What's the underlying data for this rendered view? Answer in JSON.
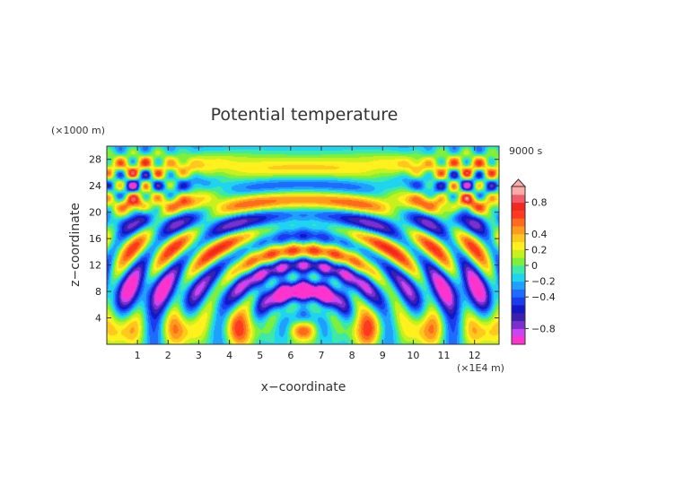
{
  "chart_data": {
    "type": "heatmap",
    "title": "Potential temperature",
    "xlabel": "x−coordinate",
    "ylabel": "z−coordinate",
    "x_unit": "(×1E4 m)",
    "y_unit": "(×1000 m)",
    "time_label": "9000 s",
    "xlim": [
      0,
      12.8
    ],
    "ylim": [
      0,
      30
    ],
    "x_ticks": [
      "1",
      "2",
      "3",
      "4",
      "5",
      "6",
      "7",
      "8",
      "9",
      "10",
      "11",
      "12"
    ],
    "y_ticks": [
      "4",
      "8",
      "12",
      "16",
      "20",
      "24",
      "28"
    ],
    "colorbar": {
      "range": [
        -1.0,
        1.0
      ],
      "tick_values": [
        0.8,
        0.4,
        0.2,
        0,
        -0.2,
        -0.4,
        -0.8
      ],
      "tick_labels": [
        "0.8",
        "0.4",
        "0.2",
        "0",
        "−0.2",
        "−0.4",
        "−0.8"
      ],
      "levels": [
        -1.0,
        -0.9,
        -0.8,
        -0.7,
        -0.6,
        -0.5,
        -0.4,
        -0.3,
        -0.2,
        -0.1,
        0,
        0.1,
        0.2,
        0.3,
        0.4,
        0.5,
        0.6,
        0.7,
        0.8,
        0.9,
        1.0
      ],
      "colors": [
        "#ff33cc",
        "#cc44ee",
        "#7a2fd0",
        "#3a1fb0",
        "#1018c8",
        "#1a3cf0",
        "#1f6aff",
        "#1fa0ff",
        "#1fd4f0",
        "#3ee8a8",
        "#7cf03c",
        "#c6f01e",
        "#fff01e",
        "#ffc81e",
        "#ff9a1e",
        "#ff6a1e",
        "#ff3a1e",
        "#f0281e",
        "#f05a6a",
        "#ffaaaa"
      ]
    },
    "field_description_note": ""
  }
}
